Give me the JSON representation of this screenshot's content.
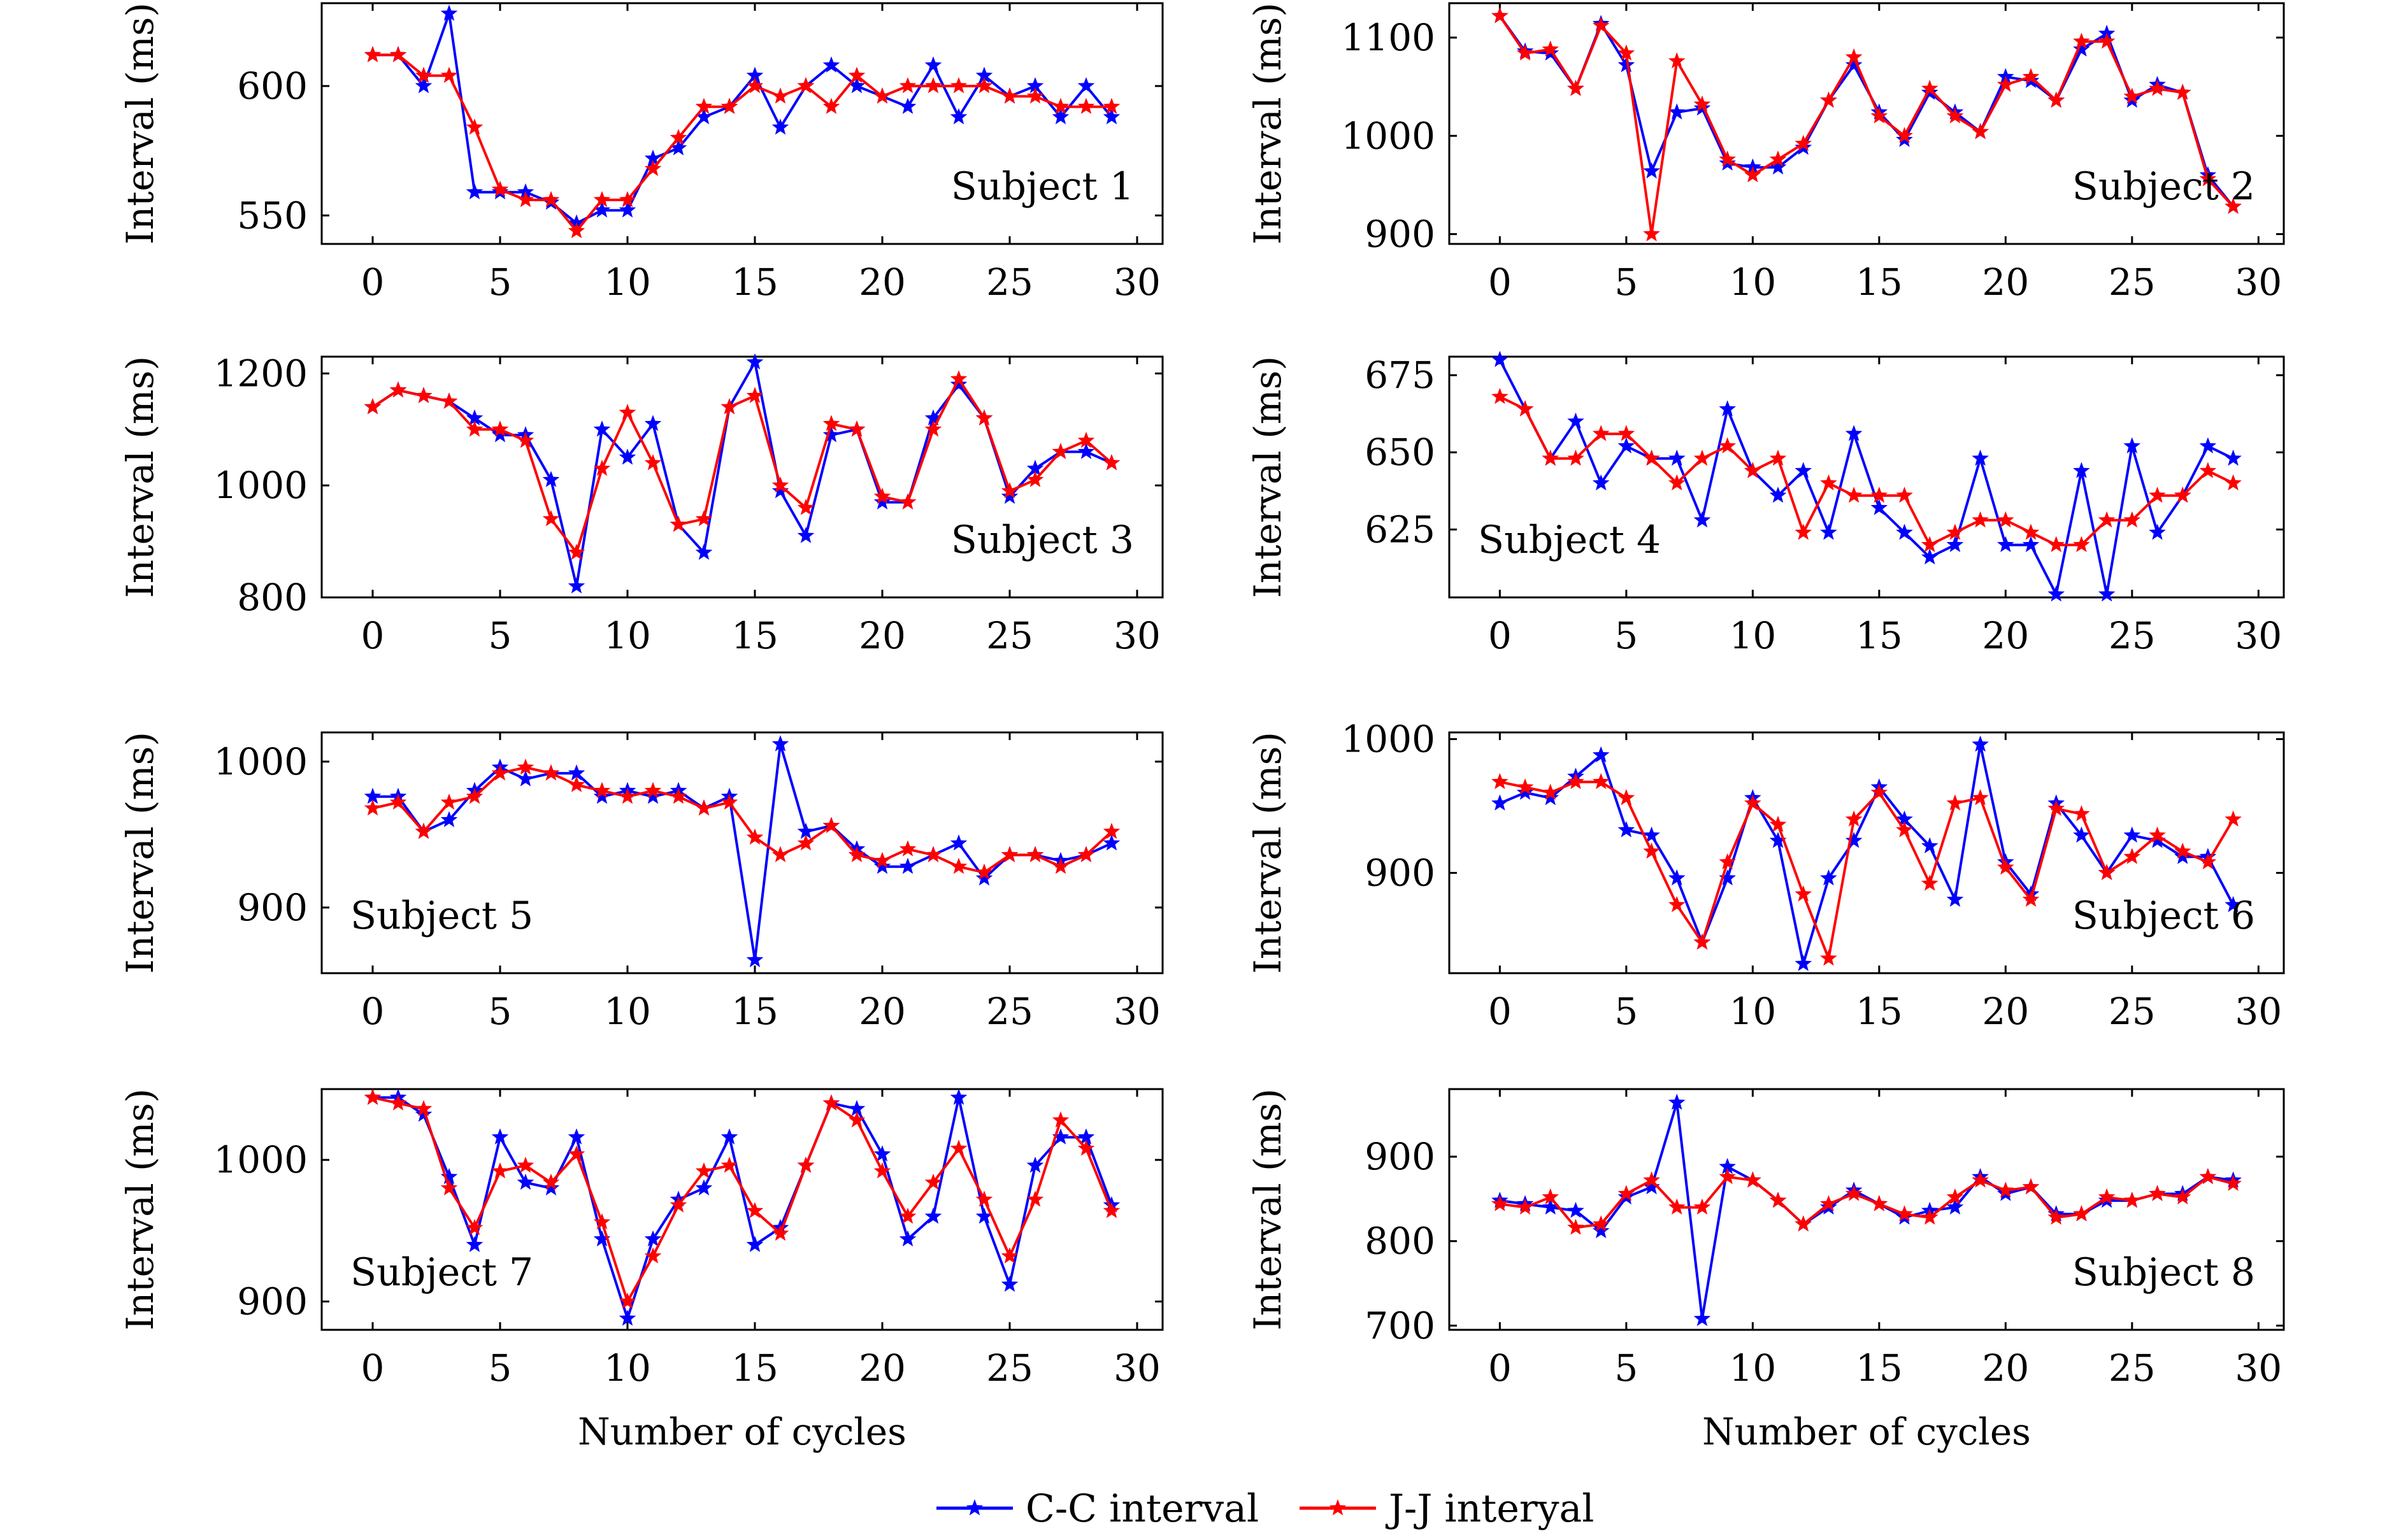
{
  "legend": {
    "cc_label": "C-C interval",
    "jj_label": "J-J interyal"
  },
  "colors": {
    "cc": "#0000ff",
    "jj": "#ff0000"
  },
  "chart_data": [
    {
      "type": "line",
      "label": "Subject 1",
      "xlabel": "",
      "ylabel": "Interval (ms)",
      "xlim": [
        -2,
        31
      ],
      "ylim": [
        539,
        632
      ],
      "xticks": [
        0,
        5,
        10,
        15,
        20,
        25,
        30
      ],
      "yticks": [
        550,
        600
      ],
      "label_pos": "bottom-right",
      "x": [
        0,
        1,
        2,
        3,
        4,
        5,
        6,
        7,
        8,
        9,
        10,
        11,
        12,
        13,
        14,
        15,
        16,
        17,
        18,
        19,
        20,
        21,
        22,
        23,
        24,
        25,
        26,
        27,
        28,
        29
      ],
      "series": [
        {
          "name": "C-C interval",
          "values": [
            612,
            612,
            600,
            628,
            559,
            559,
            559,
            555,
            547,
            552,
            552,
            572,
            576,
            588,
            592,
            604,
            584,
            600,
            608,
            600,
            596,
            592,
            608,
            588,
            604,
            596,
            600,
            588,
            600,
            588
          ]
        },
        {
          "name": "J-J interyal",
          "values": [
            612,
            612,
            604,
            604,
            584,
            560,
            556,
            556,
            544,
            556,
            556,
            568,
            580,
            592,
            592,
            600,
            596,
            600,
            592,
            604,
            596,
            600,
            600,
            600,
            600,
            596,
            596,
            592,
            592,
            592
          ]
        }
      ]
    },
    {
      "type": "line",
      "label": "Subject 2",
      "xlabel": "",
      "ylabel": "Interval (ms)",
      "xlim": [
        -2,
        31
      ],
      "ylim": [
        890,
        1135
      ],
      "xticks": [
        0,
        5,
        10,
        15,
        20,
        25,
        30
      ],
      "yticks": [
        900,
        1000,
        1100
      ],
      "label_pos": "bottom-right",
      "x": [
        0,
        1,
        2,
        3,
        4,
        5,
        6,
        7,
        8,
        9,
        10,
        11,
        12,
        13,
        14,
        15,
        16,
        17,
        18,
        19,
        20,
        21,
        22,
        23,
        24,
        25,
        26,
        27,
        28,
        29
      ],
      "series": [
        {
          "name": "C-C interval",
          "values": [
            1122,
            1086,
            1084,
            1048,
            1114,
            1072,
            964,
            1024,
            1028,
            972,
            968,
            968,
            988,
            1036,
            1072,
            1024,
            996,
            1044,
            1024,
            1004,
            1060,
            1056,
            1036,
            1088,
            1104,
            1036,
            1052,
            1044,
            960,
            928
          ]
        },
        {
          "name": "J-J interyal",
          "values": [
            1122,
            1084,
            1088,
            1048,
            1112,
            1084,
            900,
            1076,
            1032,
            976,
            960,
            976,
            992,
            1036,
            1080,
            1020,
            1000,
            1048,
            1020,
            1004,
            1052,
            1060,
            1036,
            1096,
            1096,
            1040,
            1048,
            1044,
            956,
            928
          ]
        }
      ]
    },
    {
      "type": "line",
      "label": "Subject 3",
      "xlabel": "",
      "ylabel": "Interval (ms)",
      "xlim": [
        -2,
        31
      ],
      "ylim": [
        800,
        1230
      ],
      "xticks": [
        0,
        5,
        10,
        15,
        20,
        25,
        30
      ],
      "yticks": [
        800,
        1000,
        1200
      ],
      "label_pos": "bottom-right",
      "x": [
        0,
        1,
        2,
        3,
        4,
        5,
        6,
        7,
        8,
        9,
        10,
        11,
        12,
        13,
        14,
        15,
        16,
        17,
        18,
        19,
        20,
        21,
        22,
        23,
        24,
        25,
        26,
        27,
        28,
        29
      ],
      "series": [
        {
          "name": "C-C interval",
          "values": [
            1140,
            1170,
            1160,
            1150,
            1120,
            1090,
            1090,
            1010,
            820,
            1100,
            1050,
            1110,
            930,
            880,
            1140,
            1220,
            990,
            910,
            1090,
            1100,
            970,
            970,
            1120,
            1180,
            1120,
            980,
            1030,
            1060,
            1060,
            1040
          ]
        },
        {
          "name": "J-J interyal",
          "values": [
            1140,
            1170,
            1160,
            1150,
            1100,
            1100,
            1080,
            940,
            880,
            1030,
            1130,
            1040,
            930,
            940,
            1140,
            1160,
            1000,
            960,
            1110,
            1100,
            980,
            970,
            1100,
            1190,
            1120,
            990,
            1010,
            1060,
            1080,
            1040
          ]
        }
      ]
    },
    {
      "type": "line",
      "label": "Subject 4",
      "xlabel": "",
      "ylabel": "Interval (ms)",
      "xlim": [
        -2,
        31
      ],
      "ylim": [
        603,
        681
      ],
      "xticks": [
        0,
        5,
        10,
        15,
        20,
        25,
        30
      ],
      "yticks": [
        625,
        650,
        675
      ],
      "label_pos": "bottom-left",
      "x": [
        0,
        1,
        2,
        3,
        4,
        5,
        6,
        7,
        8,
        9,
        10,
        11,
        12,
        13,
        14,
        15,
        16,
        17,
        18,
        19,
        20,
        21,
        22,
        23,
        24,
        25,
        26,
        27,
        28,
        29
      ],
      "series": [
        {
          "name": "C-C interval",
          "values": [
            680,
            664,
            648,
            660,
            640,
            652,
            648,
            648,
            628,
            664,
            644,
            636,
            644,
            624,
            656,
            632,
            624,
            616,
            620,
            648,
            620,
            620,
            604,
            644,
            604,
            652,
            624,
            636,
            652,
            648
          ]
        },
        {
          "name": "J-J interyal",
          "values": [
            668,
            664,
            648,
            648,
            656,
            656,
            648,
            640,
            648,
            652,
            644,
            648,
            624,
            640,
            636,
            636,
            636,
            620,
            624,
            628,
            628,
            624,
            620,
            620,
            628,
            628,
            636,
            636,
            644,
            640
          ]
        }
      ]
    },
    {
      "type": "line",
      "label": "Subject 5",
      "xlabel": "",
      "ylabel": "Interval (ms)",
      "xlim": [
        -2,
        31
      ],
      "ylim": [
        855,
        1020
      ],
      "xticks": [
        0,
        5,
        10,
        15,
        20,
        25,
        30
      ],
      "yticks": [
        900,
        1000
      ],
      "label_pos": "bottom-left",
      "x": [
        0,
        1,
        2,
        3,
        4,
        5,
        6,
        7,
        8,
        9,
        10,
        11,
        12,
        13,
        14,
        15,
        16,
        17,
        18,
        19,
        20,
        21,
        22,
        23,
        24,
        25,
        26,
        27,
        28,
        29
      ],
      "series": [
        {
          "name": "C-C interval",
          "values": [
            976,
            976,
            952,
            960,
            980,
            996,
            988,
            992,
            992,
            976,
            980,
            976,
            980,
            968,
            976,
            864,
            1012,
            952,
            956,
            940,
            928,
            928,
            936,
            944,
            920,
            936,
            936,
            932,
            936,
            944
          ]
        },
        {
          "name": "J-J interyal",
          "values": [
            968,
            972,
            952,
            972,
            976,
            992,
            996,
            992,
            984,
            980,
            976,
            980,
            976,
            968,
            972,
            948,
            936,
            944,
            956,
            936,
            932,
            940,
            936,
            928,
            924,
            936,
            936,
            928,
            936,
            952
          ]
        }
      ]
    },
    {
      "type": "line",
      "label": "Subject 6",
      "xlabel": "",
      "ylabel": "Interval (ms)",
      "xlim": [
        -2,
        31
      ],
      "ylim": [
        825,
        1005
      ],
      "xticks": [
        0,
        5,
        10,
        15,
        20,
        25,
        30
      ],
      "yticks": [
        900,
        1000
      ],
      "label_pos": "bottom-right",
      "x": [
        0,
        1,
        2,
        3,
        4,
        5,
        6,
        7,
        8,
        9,
        10,
        11,
        12,
        13,
        14,
        15,
        16,
        17,
        18,
        19,
        20,
        21,
        22,
        23,
        24,
        25,
        26,
        27,
        28,
        29
      ],
      "series": [
        {
          "name": "C-C interval",
          "values": [
            952,
            960,
            956,
            972,
            988,
            932,
            928,
            896,
            848,
            896,
            956,
            924,
            832,
            896,
            924,
            964,
            940,
            920,
            880,
            996,
            908,
            884,
            952,
            928,
            900,
            928,
            924,
            912,
            912,
            876
          ]
        },
        {
          "name": "J-J interyal",
          "values": [
            968,
            964,
            960,
            968,
            968,
            956,
            916,
            876,
            848,
            908,
            952,
            936,
            884,
            836,
            940,
            960,
            932,
            892,
            952,
            956,
            904,
            880,
            948,
            944,
            900,
            912,
            928,
            916,
            908,
            940
          ]
        }
      ]
    },
    {
      "type": "line",
      "label": "Subject 7",
      "xlabel": "Number of cycles",
      "ylabel": "Interval (ms)",
      "xlim": [
        -2,
        31
      ],
      "ylim": [
        880,
        1050
      ],
      "xticks": [
        0,
        5,
        10,
        15,
        20,
        25,
        30
      ],
      "yticks": [
        900,
        1000
      ],
      "label_pos": "bottom-left",
      "x": [
        0,
        1,
        2,
        3,
        4,
        5,
        6,
        7,
        8,
        9,
        10,
        11,
        12,
        13,
        14,
        15,
        16,
        17,
        18,
        19,
        20,
        21,
        22,
        23,
        24,
        25,
        26,
        27,
        28,
        29
      ],
      "series": [
        {
          "name": "C-C interval",
          "values": [
            1044,
            1044,
            1032,
            988,
            940,
            1016,
            984,
            980,
            1016,
            944,
            888,
            944,
            972,
            980,
            1016,
            940,
            952,
            996,
            1040,
            1036,
            1004,
            944,
            960,
            1044,
            960,
            912,
            996,
            1016,
            1016,
            968
          ]
        },
        {
          "name": "J-J interyal",
          "values": [
            1044,
            1040,
            1036,
            980,
            952,
            992,
            996,
            984,
            1004,
            956,
            900,
            932,
            968,
            992,
            996,
            964,
            948,
            996,
            1040,
            1028,
            992,
            960,
            984,
            1008,
            972,
            932,
            972,
            1028,
            1008,
            964
          ]
        }
      ]
    },
    {
      "type": "line",
      "label": "Subject 8",
      "xlabel": "Number of cycles",
      "ylabel": "Interval (ms)",
      "xlim": [
        -2,
        31
      ],
      "ylim": [
        695,
        980
      ],
      "xticks": [
        0,
        5,
        10,
        15,
        20,
        25,
        30
      ],
      "yticks": [
        700,
        800,
        900
      ],
      "label_pos": "bottom-right",
      "x": [
        0,
        1,
        2,
        3,
        4,
        5,
        6,
        7,
        8,
        9,
        10,
        11,
        12,
        13,
        14,
        15,
        16,
        17,
        18,
        19,
        20,
        21,
        22,
        23,
        24,
        25,
        26,
        27,
        28,
        29
      ],
      "series": [
        {
          "name": "C-C interval",
          "values": [
            848,
            844,
            840,
            836,
            812,
            852,
            864,
            964,
            708,
            888,
            872,
            848,
            820,
            840,
            860,
            844,
            828,
            836,
            840,
            876,
            856,
            864,
            832,
            832,
            848,
            848,
            856,
            856,
            876,
            872
          ]
        },
        {
          "name": "J-J interyal",
          "values": [
            844,
            840,
            852,
            816,
            820,
            856,
            872,
            840,
            840,
            876,
            872,
            848,
            820,
            844,
            856,
            844,
            832,
            828,
            852,
            872,
            860,
            864,
            828,
            832,
            852,
            848,
            856,
            852,
            876,
            868
          ]
        }
      ]
    }
  ]
}
